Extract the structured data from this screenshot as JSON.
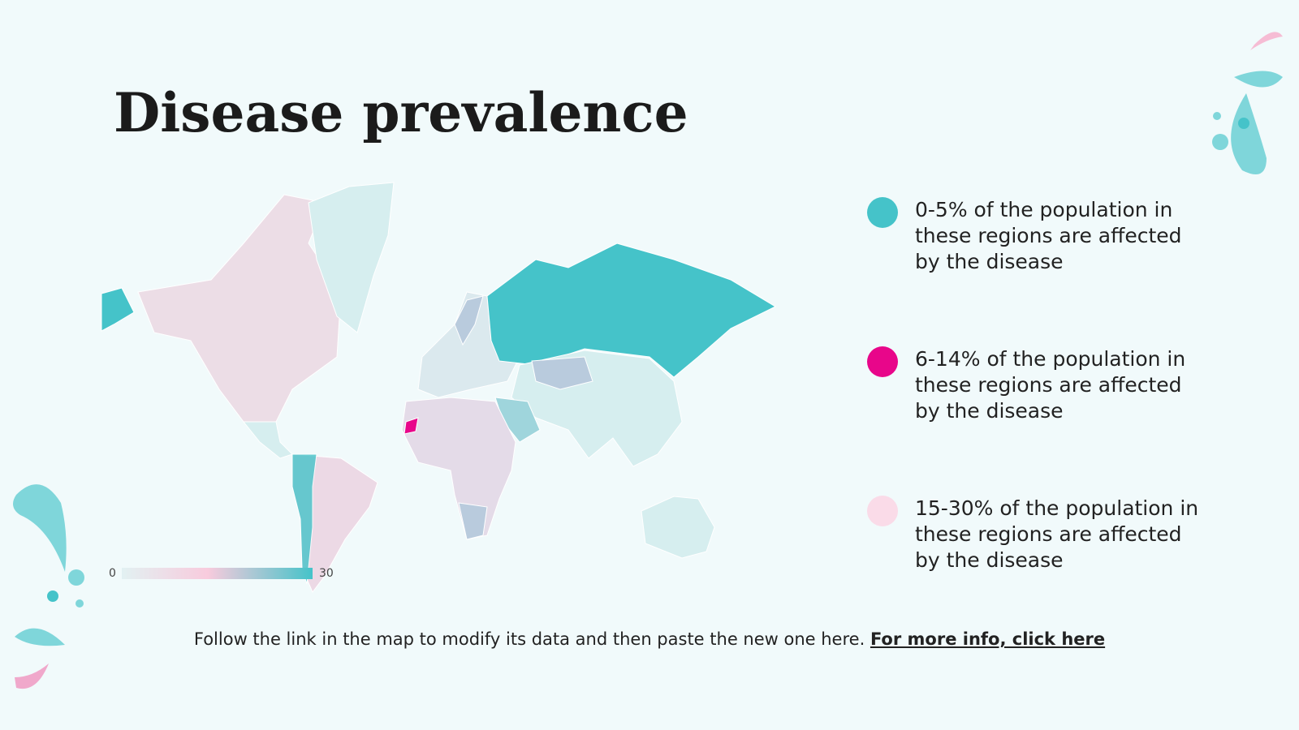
{
  "header": {
    "title": "Disease prevalence"
  },
  "map": {
    "scale": {
      "min": 0,
      "max": 30
    }
  },
  "legend": [
    {
      "label": "0-5% of the population in these regions are affected by the disease",
      "color": "#45c3c9"
    },
    {
      "label": "6-14% of the population in these regions are affected by the disease",
      "color": "#e8068a"
    },
    {
      "label": "15-30% of the population in these regions are affected by the disease",
      "color": "#fadbe8"
    }
  ],
  "footer": {
    "text": "Follow the link in the map to modify its data and then paste the new one here.",
    "link": "For more info, click here"
  }
}
